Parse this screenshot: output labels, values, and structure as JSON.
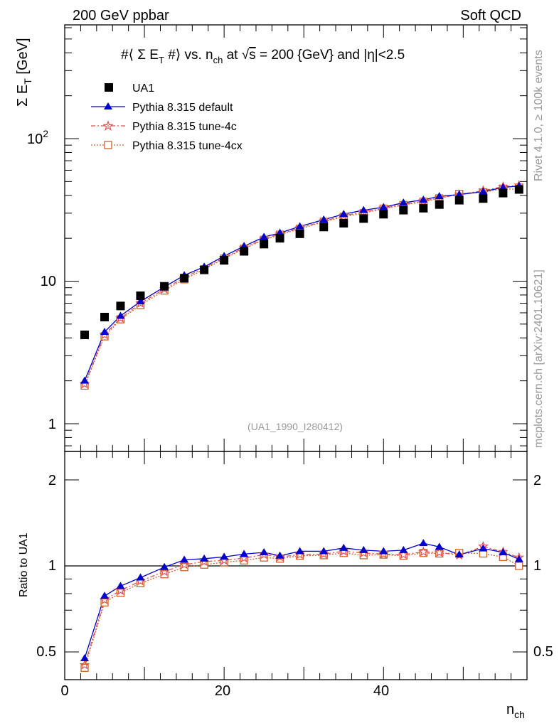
{
  "header": {
    "left": "200 GeV ppbar",
    "right": "Soft QCD"
  },
  "plot_title": {
    "p1": "#⟨ Σ E",
    "sub1": "T",
    "p2": " #⟩ vs. n",
    "sub2": "ch",
    "p3": " at ",
    "root": "√",
    "s": "s",
    "p4": " = 200 {GeV} and |η|<2.5"
  },
  "side_labels": {
    "rivet": "Rivet 4.1.0, ≥ 100k events",
    "mcplots": "mcplots.cern.ch [arXiv:2401.10621]"
  },
  "reference": "(UA1_1990_I280412)",
  "colors": {
    "data": "#000000",
    "default": "#0000cc",
    "tune4c": "#e05050",
    "tune4cx": "#c8642d"
  },
  "chart_data": [
    {
      "type": "scatter",
      "title": "#⟨ Σ E_T #⟩ vs. n_ch at √s = 200 {GeV} and |η|<2.5",
      "ylabel": {
        "main": "Σ E",
        "sub": "T",
        "unit": " [GeV]"
      },
      "xlabel": "",
      "yscale": "log",
      "xlim": [
        0,
        58
      ],
      "ylim": [
        0.65,
        800
      ],
      "x_ticks": [
        0,
        20,
        40
      ],
      "y_ticks": [
        1,
        10,
        100
      ],
      "y_tick_labels": {
        "1": "1",
        "10": "10",
        "100base": "10",
        "100exp": "2"
      },
      "x": [
        2.5,
        5,
        7,
        9.5,
        12.5,
        15,
        17.5,
        20,
        22.5,
        25,
        27,
        29.5,
        32.5,
        35,
        37.5,
        40,
        42.5,
        45,
        47,
        49.5,
        52.5,
        55,
        57
      ],
      "series": [
        {
          "name": "UA1",
          "marker": "square",
          "values": [
            4.2,
            5.6,
            6.7,
            7.9,
            9.2,
            10.5,
            12.0,
            14.0,
            16.2,
            18.2,
            20.0,
            21.5,
            24.0,
            25.5,
            27.5,
            29.5,
            31.5,
            32.5,
            34.5,
            37.0,
            38.0,
            41.5,
            44.0
          ]
        },
        {
          "name": "Pythia 8.315 default",
          "marker": "triangle",
          "values": [
            2.0,
            4.4,
            5.7,
            7.2,
            9.1,
            11.0,
            12.6,
            15.0,
            17.6,
            20.4,
            21.8,
            24.2,
            27.0,
            29.5,
            31.5,
            33.0,
            35.5,
            37.2,
            39.4,
            40.5,
            42.5,
            45.5,
            46.5
          ]
        },
        {
          "name": "Pythia 8.315 tune-4c",
          "marker": "star",
          "values": [
            1.9,
            4.2,
            5.5,
            7.0,
            8.8,
            10.6,
            12.4,
            14.6,
            17.2,
            19.8,
            21.5,
            23.6,
            26.4,
            28.8,
            30.6,
            32.5,
            34.6,
            36.5,
            38.5,
            40.5,
            43.2,
            46.0,
            47.0
          ]
        },
        {
          "name": "Pythia 8.315 tune-4cx",
          "marker": "open-square",
          "values": [
            1.85,
            4.1,
            5.4,
            6.8,
            8.6,
            10.3,
            12.1,
            14.4,
            16.9,
            19.5,
            21.2,
            23.3,
            26.1,
            28.3,
            30.0,
            32.3,
            34.2,
            36.1,
            38.1,
            41.0,
            42.0,
            44.6,
            44.0
          ]
        }
      ]
    },
    {
      "type": "line",
      "title": "Ratio to UA1",
      "ylabel": "Ratio to UA1",
      "xlabel": {
        "main": "n",
        "sub": "ch"
      },
      "xlim": [
        0,
        58
      ],
      "ylim": [
        0.4,
        2.5
      ],
      "y_scale": "log",
      "x_ticks": [
        0,
        20,
        40
      ],
      "y_ticks": [
        0.5,
        1,
        2
      ],
      "y_tick_labels": [
        "0.5",
        "1",
        "2"
      ],
      "x": [
        2.5,
        5,
        7,
        9.5,
        12.5,
        15,
        17.5,
        20,
        22.5,
        25,
        27,
        29.5,
        32.5,
        35,
        37.5,
        40,
        42.5,
        45,
        47,
        49.5,
        52.5,
        55,
        57
      ],
      "series": [
        {
          "name": "Pythia 8.315 default",
          "values": [
            0.475,
            0.785,
            0.85,
            0.91,
            0.99,
            1.05,
            1.06,
            1.075,
            1.1,
            1.115,
            1.085,
            1.125,
            1.125,
            1.155,
            1.135,
            1.125,
            1.135,
            1.2,
            1.165,
            1.095,
            1.15,
            1.115,
            1.055
          ]
        },
        {
          "name": "Pythia 8.315 tune-4c",
          "values": [
            0.45,
            0.76,
            0.82,
            0.885,
            0.955,
            1.01,
            1.035,
            1.045,
            1.065,
            1.095,
            1.075,
            1.095,
            1.1,
            1.125,
            1.11,
            1.1,
            1.095,
            1.12,
            1.115,
            1.09,
            1.17,
            1.12,
            1.07
          ]
        },
        {
          "name": "Pythia 8.315 tune-4cx",
          "values": [
            0.44,
            0.745,
            0.805,
            0.87,
            0.935,
            0.99,
            1.01,
            1.03,
            1.045,
            1.07,
            1.06,
            1.085,
            1.09,
            1.11,
            1.09,
            1.095,
            1.085,
            1.11,
            1.105,
            1.11,
            1.105,
            1.075,
            1.0
          ]
        }
      ]
    }
  ],
  "legend": [
    {
      "label": "UA1"
    },
    {
      "label": "Pythia 8.315 default"
    },
    {
      "label": "Pythia 8.315 tune-4c"
    },
    {
      "label": "Pythia 8.315 tune-4cx"
    }
  ]
}
